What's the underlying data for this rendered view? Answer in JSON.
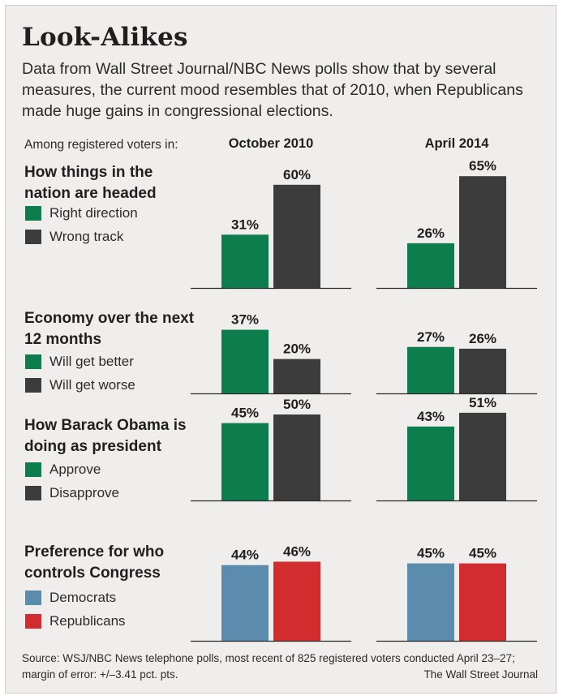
{
  "title": "Look-Alikes",
  "subtitle": "Data from Wall Street Journal/NBC News polls show that by several measures, the current mood resembles that of 2010, when Republicans made huge gains in congressional elections.",
  "among_label": "Among registered voters in:",
  "columns": [
    "October 2010",
    "April 2014"
  ],
  "colors": {
    "green": "#0e7d4e",
    "dark": "#3c3c3c",
    "blue": "#5b8cad",
    "red": "#d12d2f",
    "background": "#f0eeed",
    "axis": "#2a2a2a"
  },
  "chart_data": {
    "type": "bar",
    "ylim": [
      0,
      100
    ],
    "value_suffix": "%",
    "periods": [
      "October 2010",
      "April 2014"
    ],
    "panels": [
      {
        "title": "How things in the nation are headed",
        "series": [
          {
            "name": "Right direction",
            "color": "#0e7d4e",
            "values": [
              31,
              26
            ]
          },
          {
            "name": "Wrong track",
            "color": "#3c3c3c",
            "values": [
              60,
              65
            ]
          }
        ]
      },
      {
        "title": "Economy over the next 12 months",
        "series": [
          {
            "name": "Will get better",
            "color": "#0e7d4e",
            "values": [
              37,
              27
            ]
          },
          {
            "name": "Will get worse",
            "color": "#3c3c3c",
            "values": [
              20,
              26
            ]
          }
        ]
      },
      {
        "title": "How Barack Obama is doing as president",
        "series": [
          {
            "name": "Approve",
            "color": "#0e7d4e",
            "values": [
              45,
              43
            ]
          },
          {
            "name": "Disapprove",
            "color": "#3c3c3c",
            "values": [
              50,
              51
            ]
          }
        ]
      },
      {
        "title": "Preference for who controls Congress",
        "series": [
          {
            "name": "Democrats",
            "color": "#5b8cad",
            "values": [
              44,
              45
            ]
          },
          {
            "name": "Republicans",
            "color": "#d12d2f",
            "values": [
              46,
              45
            ]
          }
        ]
      }
    ]
  },
  "footer": {
    "source": "Source: WSJ/NBC News telephone polls, most recent of 825 registered voters conducted April 23–27; margin of error: +/–3.41 pct. pts.",
    "credit": "The Wall Street Journal"
  }
}
